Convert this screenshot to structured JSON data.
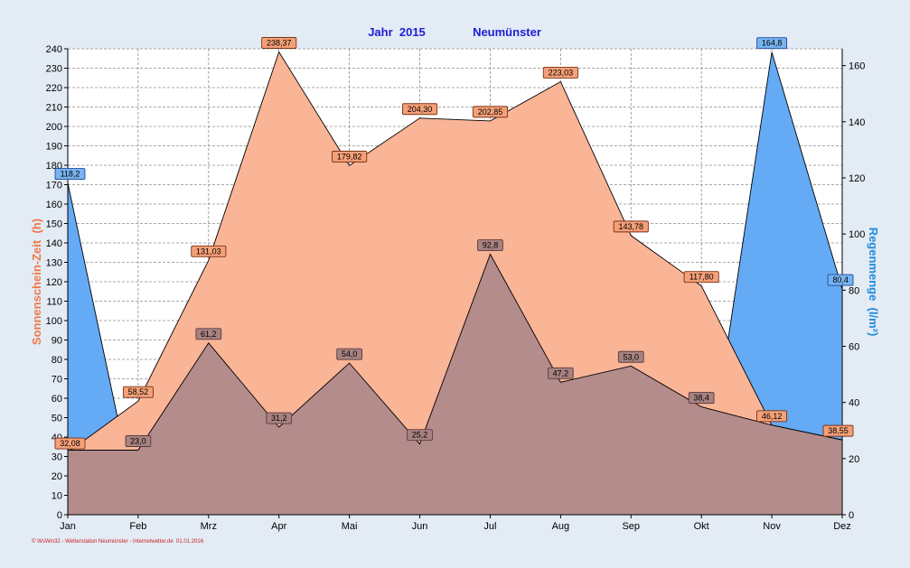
{
  "chart_data": {
    "type": "area",
    "title_year": "Jahr  2015",
    "title_location": "Neumünster",
    "categories": [
      "Jan",
      "Feb",
      "Mrz",
      "Apr",
      "Mai",
      "Jun",
      "Jul",
      "Aug",
      "Sep",
      "Okt",
      "Nov",
      "Dez"
    ],
    "ylabel_left": "Sonnenschein-Zeit  (h)",
    "ylabel_right": "Regenmenge  (l/m²)",
    "ylim_left": [
      0,
      240
    ],
    "ylim_right": [
      0,
      166
    ],
    "yticks_left": [
      0,
      10,
      20,
      30,
      40,
      50,
      60,
      70,
      80,
      90,
      100,
      110,
      120,
      130,
      140,
      150,
      160,
      170,
      180,
      190,
      200,
      210,
      220,
      230,
      240
    ],
    "yticks_right": [
      0,
      20,
      40,
      60,
      80,
      100,
      120,
      140,
      160
    ],
    "grid": true,
    "series": [
      {
        "axis": "right",
        "color": "#64aaf5",
        "values": [
          118.2,
          0,
          0,
          0,
          0,
          0,
          0,
          0,
          0,
          0,
          164.8,
          80.4
        ],
        "labels": [
          "118,2",
          "",
          "",
          "",
          "",
          "",
          "",
          "",
          "",
          "",
          "164,8",
          "80,4"
        ]
      },
      {
        "axis": "left",
        "color": "#fab496",
        "values": [
          32.08,
          58.52,
          131.03,
          238.37,
          179.82,
          204.3,
          202.85,
          223.03,
          143.78,
          117.8,
          46.12,
          38.55
        ],
        "labels": [
          "32,08",
          "58,52",
          "131,03",
          "238,37",
          "179,82",
          "204,30",
          "202,85",
          "223,03",
          "143,78",
          "117,80",
          "46,12",
          "38,55"
        ]
      },
      {
        "axis": "right",
        "color": "#b48c8c",
        "values": [
          23.0,
          23.0,
          61.2,
          31.2,
          54.0,
          25.2,
          92.8,
          47.2,
          53.0,
          38.4,
          31.9,
          26.6
        ],
        "labels": [
          "",
          "23,0",
          "61,2",
          "31,2",
          "54,0",
          "25,2",
          "92,8",
          "47,2",
          "53,0",
          "38,4",
          "",
          ""
        ]
      }
    ],
    "credit": "© WsWin32 - Wetterstation Neumünster - Internetwetter.de  01.01.2016"
  }
}
